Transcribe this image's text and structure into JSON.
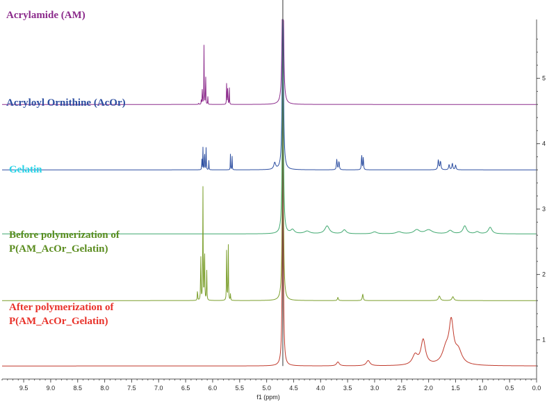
{
  "chart_data": {
    "type": "line",
    "xlabel": "f1 (ppm)",
    "xlim": [
      9.9,
      0.0
    ],
    "x_ticks": [
      "9.5",
      "9.0",
      "8.5",
      "8.0",
      "7.5",
      "7.0",
      "6.5",
      "6.0",
      "5.5",
      "5.0",
      "4.5",
      "4.0",
      "3.5",
      "3.0",
      "2.5",
      "2.0",
      "1.5",
      "1.0",
      "0.5",
      "0.0"
    ],
    "ylim": [
      0.4,
      5.9
    ],
    "y_ticks": [
      "1",
      "2",
      "3",
      "4",
      "5"
    ],
    "series": [
      {
        "name": "Acrylamide (AM)",
        "color": "#8b2a8b",
        "baseline": 4.6,
        "peaks": [
          [
            6.26,
            0.03,
            0.003
          ],
          [
            6.21,
            0.08,
            0.003
          ],
          [
            6.19,
            0.35,
            0.003
          ],
          [
            6.16,
            0.9,
            0.003
          ],
          [
            6.13,
            0.6,
            0.003
          ],
          [
            6.09,
            0.12,
            0.003
          ],
          [
            5.74,
            0.42,
            0.003
          ],
          [
            5.72,
            0.38,
            0.003
          ],
          [
            5.69,
            0.25,
            0.003
          ]
        ]
      },
      {
        "name": "Acryloyl Ornithine (AcOr)",
        "color": "#2b4da0",
        "baseline": 3.6,
        "peaks": [
          [
            6.2,
            0.18,
            0.003
          ],
          [
            6.18,
            0.35,
            0.003
          ],
          [
            6.15,
            0.42,
            0.003
          ],
          [
            6.12,
            0.42,
            0.003
          ],
          [
            6.07,
            0.14,
            0.003
          ],
          [
            5.67,
            0.26,
            0.003
          ],
          [
            5.64,
            0.24,
            0.003
          ],
          [
            4.85,
            0.1,
            0.02
          ],
          [
            3.7,
            0.16,
            0.008
          ],
          [
            3.66,
            0.13,
            0.008
          ],
          [
            3.24,
            0.24,
            0.006
          ],
          [
            3.21,
            0.2,
            0.006
          ],
          [
            1.82,
            0.15,
            0.01
          ],
          [
            1.78,
            0.13,
            0.01
          ],
          [
            1.62,
            0.08,
            0.01
          ],
          [
            1.56,
            0.1,
            0.01
          ],
          [
            1.5,
            0.07,
            0.01
          ]
        ]
      },
      {
        "name": "Gelatin",
        "color": "#3fa86f",
        "baseline": 2.62,
        "peaks": [
          [
            4.52,
            0.06,
            0.04
          ],
          [
            4.25,
            0.04,
            0.06
          ],
          [
            3.88,
            0.12,
            0.05
          ],
          [
            3.56,
            0.06,
            0.04
          ],
          [
            3.0,
            0.03,
            0.05
          ],
          [
            2.55,
            0.03,
            0.06
          ],
          [
            2.22,
            0.06,
            0.06
          ],
          [
            2.0,
            0.06,
            0.08
          ],
          [
            1.6,
            0.05,
            0.05
          ],
          [
            1.33,
            0.12,
            0.04
          ],
          [
            1.1,
            0.03,
            0.04
          ],
          [
            0.86,
            0.1,
            0.04
          ]
        ]
      },
      {
        "name": "Before polymerization of\nP(AM_AcOr_Gelatin)",
        "color": "#7a9e2a",
        "baseline": 1.6,
        "peaks": [
          [
            6.28,
            0.18,
            0.004
          ],
          [
            6.22,
            0.8,
            0.004
          ],
          [
            6.18,
            1.75,
            0.004
          ],
          [
            6.15,
            1.0,
            0.004
          ],
          [
            6.11,
            0.5,
            0.004
          ],
          [
            5.74,
            0.9,
            0.004
          ],
          [
            5.71,
            0.85,
            0.004
          ],
          [
            5.67,
            0.1,
            0.004
          ],
          [
            3.68,
            0.05,
            0.01
          ],
          [
            3.22,
            0.1,
            0.01
          ],
          [
            1.8,
            0.07,
            0.02
          ],
          [
            1.55,
            0.06,
            0.02
          ]
        ]
      },
      {
        "name": "After polymerization of\nP(AM_AcOr_Gelatin)",
        "color": "#c0392b",
        "baseline": 0.6,
        "peaks": [
          [
            3.68,
            0.06,
            0.03
          ],
          [
            3.12,
            0.08,
            0.04
          ],
          [
            2.25,
            0.15,
            0.06
          ],
          [
            2.1,
            0.38,
            0.05
          ],
          [
            1.68,
            0.22,
            0.08
          ],
          [
            1.58,
            0.6,
            0.05
          ],
          [
            1.45,
            0.2,
            0.08
          ]
        ]
      }
    ],
    "solvent_peak": {
      "ppm": 4.7,
      "color": "#555555"
    }
  }
}
